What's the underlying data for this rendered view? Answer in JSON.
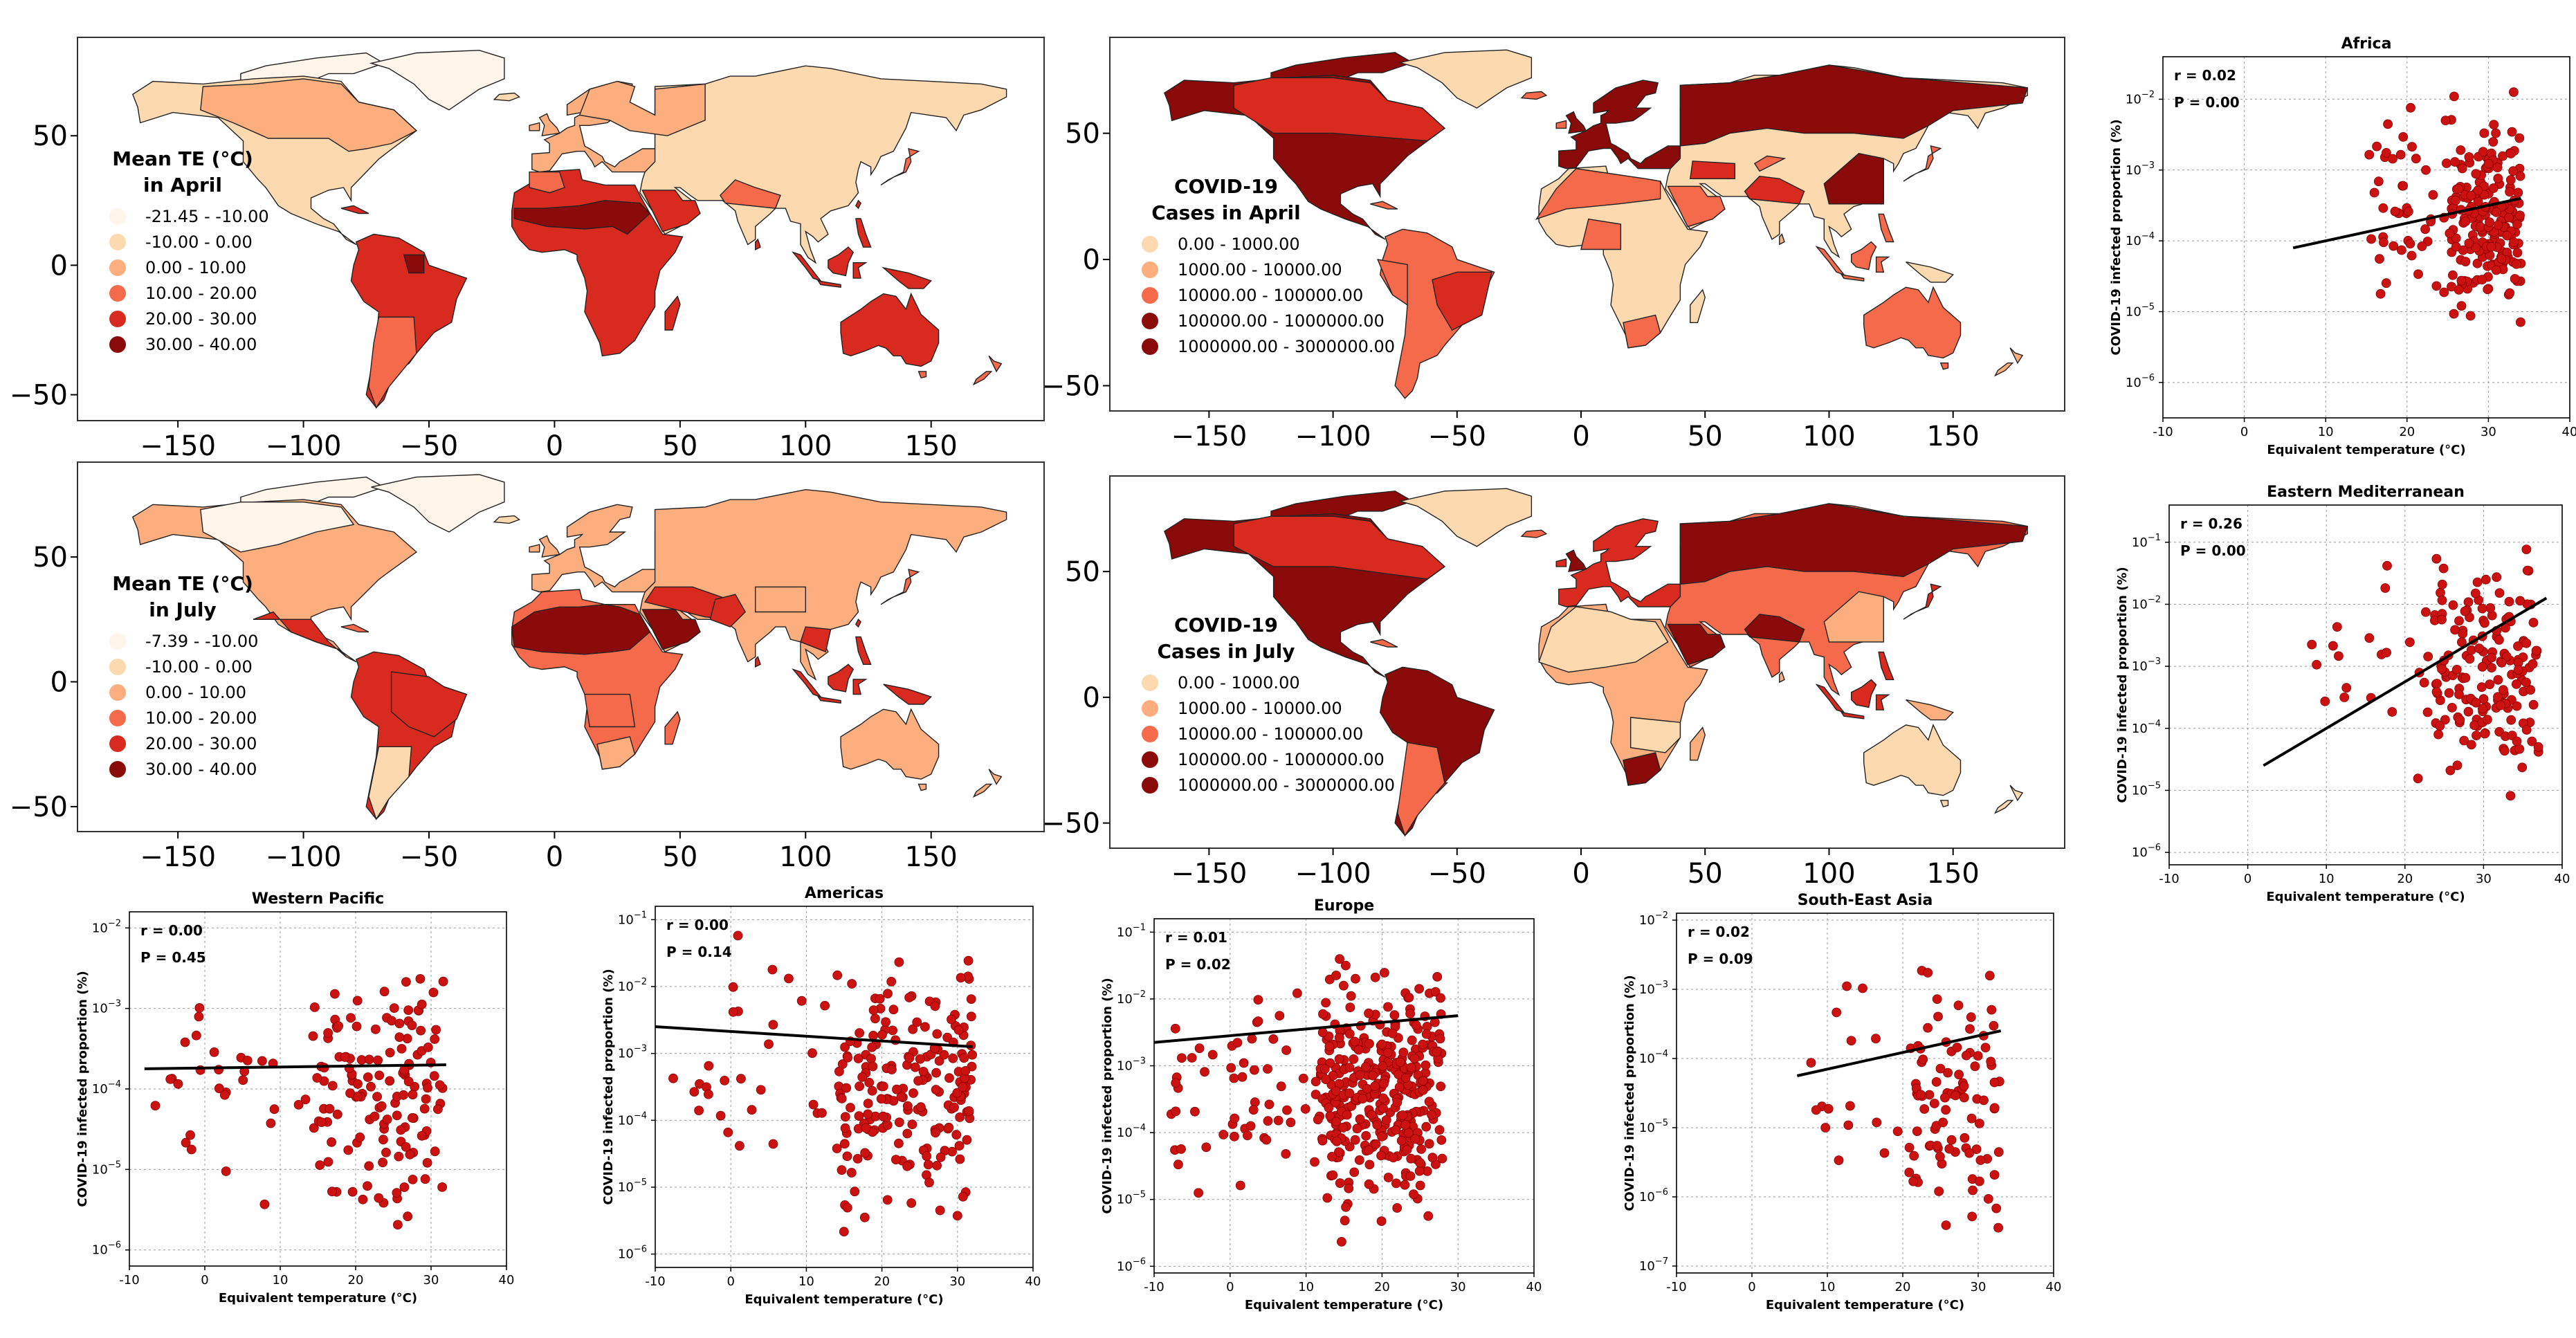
{
  "colors": {
    "c0": "#fff5eb",
    "c1": "#fdd9b0",
    "c2": "#fdae7e",
    "c3": "#f56a4a",
    "c4": "#d92a1f",
    "c5": "#8a0a0a",
    "point": "#cc1111",
    "fit": "#000000"
  },
  "chart_data": [
    {
      "type": "map",
      "panel": "Mean TE in April",
      "legend_title": [
        "Mean TE (°C)",
        "in April"
      ],
      "legend": [
        "-21.45 - -10.00",
        "-10.00 - 0.00",
        "0.00 - 10.00",
        "10.00 - 20.00",
        "20.00 - 30.00",
        "30.00 - 40.00"
      ],
      "x_ticks": [
        "−150",
        "−100",
        "−50",
        "0",
        "50",
        "100",
        "150"
      ],
      "y_ticks": [
        "50",
        "0",
        "−50"
      ]
    },
    {
      "type": "map",
      "panel": "COVID-19 Cases in April",
      "legend_title": [
        "COVID-19",
        "Cases in April"
      ],
      "legend": [
        "0.00 - 1000.00",
        "1000.00 - 10000.00",
        "10000.00 - 100000.00",
        "100000.00 - 1000000.00",
        "1000000.00 - 3000000.00"
      ],
      "x_ticks": [
        "−150",
        "−100",
        "−50",
        "0",
        "50",
        "100",
        "150"
      ],
      "y_ticks": [
        "50",
        "0",
        "−50"
      ]
    },
    {
      "type": "map",
      "panel": "Mean TE in July",
      "legend_title": [
        "Mean TE (°C)",
        "in July"
      ],
      "legend": [
        "-7.39 - -10.00",
        "-10.00 - 0.00",
        "0.00 - 10.00",
        "10.00 - 20.00",
        "20.00 - 30.00",
        "30.00 - 40.00"
      ],
      "x_ticks": [
        "−150",
        "−100",
        "−50",
        "0",
        "50",
        "100",
        "150"
      ],
      "y_ticks": [
        "50",
        "0",
        "−50"
      ]
    },
    {
      "type": "map",
      "panel": "COVID-19 Cases in July",
      "legend_title": [
        "COVID-19",
        "Cases in July"
      ],
      "legend": [
        "0.00 - 1000.00",
        "1000.00 - 10000.00",
        "10000.00 - 100000.00",
        "100000.00 - 1000000.00",
        "1000000.00 - 3000000.00"
      ],
      "x_ticks": [
        "−150",
        "−100",
        "−50",
        "0",
        "50",
        "100",
        "150"
      ],
      "y_ticks": [
        "50",
        "0",
        "−50"
      ]
    },
    {
      "type": "scatter",
      "title": "Africa",
      "r": "r = 0.02",
      "p": "P = 0.00",
      "xlabel": "Equivalent temperature (°C)",
      "ylabel": "COVID-19 infected proportion (%)",
      "xlim": [
        -10,
        40
      ],
      "x_ticks": [
        "-10",
        "0",
        "10",
        "20",
        "30",
        "40"
      ],
      "ylim_exp": [
        -6.5,
        -1.4
      ],
      "y_exps": [
        -6,
        -5,
        -4,
        -3,
        -2
      ],
      "fit": [
        [
          6,
          -4.1
        ],
        [
          34,
          -3.4
        ]
      ],
      "cluster": {
        "x": [
          15,
          34
        ],
        "y": [
          -5.6,
          -1.7
        ]
      },
      "seed": 11,
      "n": 260
    },
    {
      "type": "scatter",
      "title": "Eastern Mediterranean",
      "r": "r = 0.26",
      "p": "P = 0.00",
      "xlabel": "Equivalent temperature (°C)",
      "ylabel": "COVID-19 infected proportion (%)",
      "xlim": [
        -10,
        40
      ],
      "x_ticks": [
        "-10",
        "0",
        "10",
        "20",
        "30",
        "40"
      ],
      "ylim_exp": [
        -6.2,
        -0.4
      ],
      "y_exps": [
        -6,
        -5,
        -4,
        -3,
        -2,
        -1
      ],
      "fit": [
        [
          2,
          -4.6
        ],
        [
          38,
          -1.9
        ]
      ],
      "cluster": {
        "x": [
          8,
          37
        ],
        "y": [
          -5.4,
          -0.7
        ]
      },
      "seed": 23,
      "n": 190
    },
    {
      "type": "scatter",
      "title": "Western Pacific",
      "r": "r = 0.00",
      "p": "P = 0.45",
      "xlabel": "Equivalent temperature (°C)",
      "ylabel": "COVID-19 infected proportion (%)",
      "xlim": [
        -10,
        40
      ],
      "x_ticks": [
        "-10",
        "0",
        "10",
        "20",
        "30",
        "40"
      ],
      "ylim_exp": [
        -6.2,
        -1.8
      ],
      "y_exps": [
        -6,
        -5,
        -4,
        -3,
        -2
      ],
      "fit": [
        [
          -8,
          -3.75
        ],
        [
          32,
          -3.7
        ]
      ],
      "cluster": {
        "x": [
          -7,
          32
        ],
        "y": [
          -6.0,
          -2.0
        ]
      },
      "seed": 37,
      "n": 170
    },
    {
      "type": "scatter",
      "title": "Americas",
      "r": "r = 0.00",
      "p": "P = 0.14",
      "xlabel": "Equivalent temperature (°C)",
      "ylabel": "COVID-19 infected proportion (%)",
      "xlim": [
        -10,
        40
      ],
      "x_ticks": [
        "-10",
        "0",
        "10",
        "20",
        "30",
        "40"
      ],
      "ylim_exp": [
        -6.2,
        -0.8
      ],
      "y_exps": [
        -6,
        -5,
        -4,
        -3,
        -2,
        -1
      ],
      "fit": [
        [
          -10,
          -2.6
        ],
        [
          32,
          -2.9
        ]
      ],
      "cluster": {
        "x": [
          -8,
          32
        ],
        "y": [
          -6.0,
          -1.0
        ]
      },
      "seed": 41,
      "n": 230
    },
    {
      "type": "scatter",
      "title": "Europe",
      "r": "r = 0.01",
      "p": "P = 0.02",
      "xlabel": "Equivalent temperature (°C)",
      "ylabel": "COVID-19 infected proportion (%)",
      "xlim": [
        -10,
        40
      ],
      "x_ticks": [
        "-10",
        "0",
        "10",
        "20",
        "30",
        "40"
      ],
      "ylim_exp": [
        -6.1,
        -0.8
      ],
      "y_exps": [
        -6,
        -5,
        -4,
        -3,
        -2,
        -1
      ],
      "fit": [
        [
          -10,
          -2.65
        ],
        [
          30,
          -2.25
        ]
      ],
      "cluster": {
        "x": [
          -8,
          28
        ],
        "y": [
          -5.8,
          -1.0
        ]
      },
      "seed": 53,
      "n": 420
    },
    {
      "type": "scatter",
      "title": "South-East Asia",
      "r": "r = 0.02",
      "p": "P = 0.09",
      "xlabel": "Equivalent temperature (°C)",
      "ylabel": "COVID-19 infected proportion (%)",
      "xlim": [
        -10,
        40
      ],
      "x_ticks": [
        "-10",
        "0",
        "10",
        "20",
        "30",
        "40"
      ],
      "ylim_exp": [
        -7.1,
        -1.9
      ],
      "y_exps": [
        -7,
        -6,
        -5,
        -4,
        -3,
        -2
      ],
      "fit": [
        [
          6,
          -4.25
        ],
        [
          33,
          -3.6
        ]
      ],
      "cluster": {
        "x": [
          6,
          33
        ],
        "y": [
          -6.9,
          -2.2
        ]
      },
      "seed": 67,
      "n": 110
    }
  ]
}
